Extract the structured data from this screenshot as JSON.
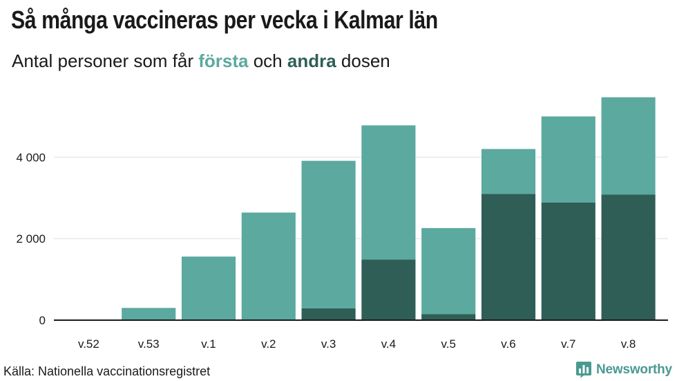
{
  "title": "Så många vaccineras per vecka i Kalmar län",
  "subtitle": {
    "prefix": "Antal personer som får ",
    "first": "första",
    "middle": " och ",
    "second": "andra",
    "suffix": " dosen"
  },
  "source": "Källa: Nationella vaccinationsregistret",
  "brand": "Newsworthy",
  "colors": {
    "first_dose": "#5ba99f",
    "second_dose": "#2f5e57",
    "grid": "#e5e5e5",
    "axis": "#1a1a1a",
    "brand": "#4a9a90"
  },
  "chart_data": {
    "type": "bar",
    "stacked": true,
    "categories": [
      "v.52",
      "v.53",
      "v.1",
      "v.2",
      "v.3",
      "v.4",
      "v.5",
      "v.6",
      "v.7",
      "v.8"
    ],
    "series": [
      {
        "name": "andra",
        "values": [
          0,
          0,
          0,
          0,
          290,
          1490,
          150,
          3100,
          2890,
          3080
        ]
      },
      {
        "name": "första",
        "values": [
          0,
          300,
          1560,
          2640,
          3620,
          3290,
          2110,
          1100,
          2110,
          2390
        ]
      }
    ],
    "ylim": [
      0,
      5600
    ],
    "yticks": [
      0,
      2000,
      4000
    ],
    "ytick_labels": [
      "0",
      "2 000",
      "4 000"
    ],
    "grid": true,
    "xlabel": "",
    "ylabel": ""
  }
}
